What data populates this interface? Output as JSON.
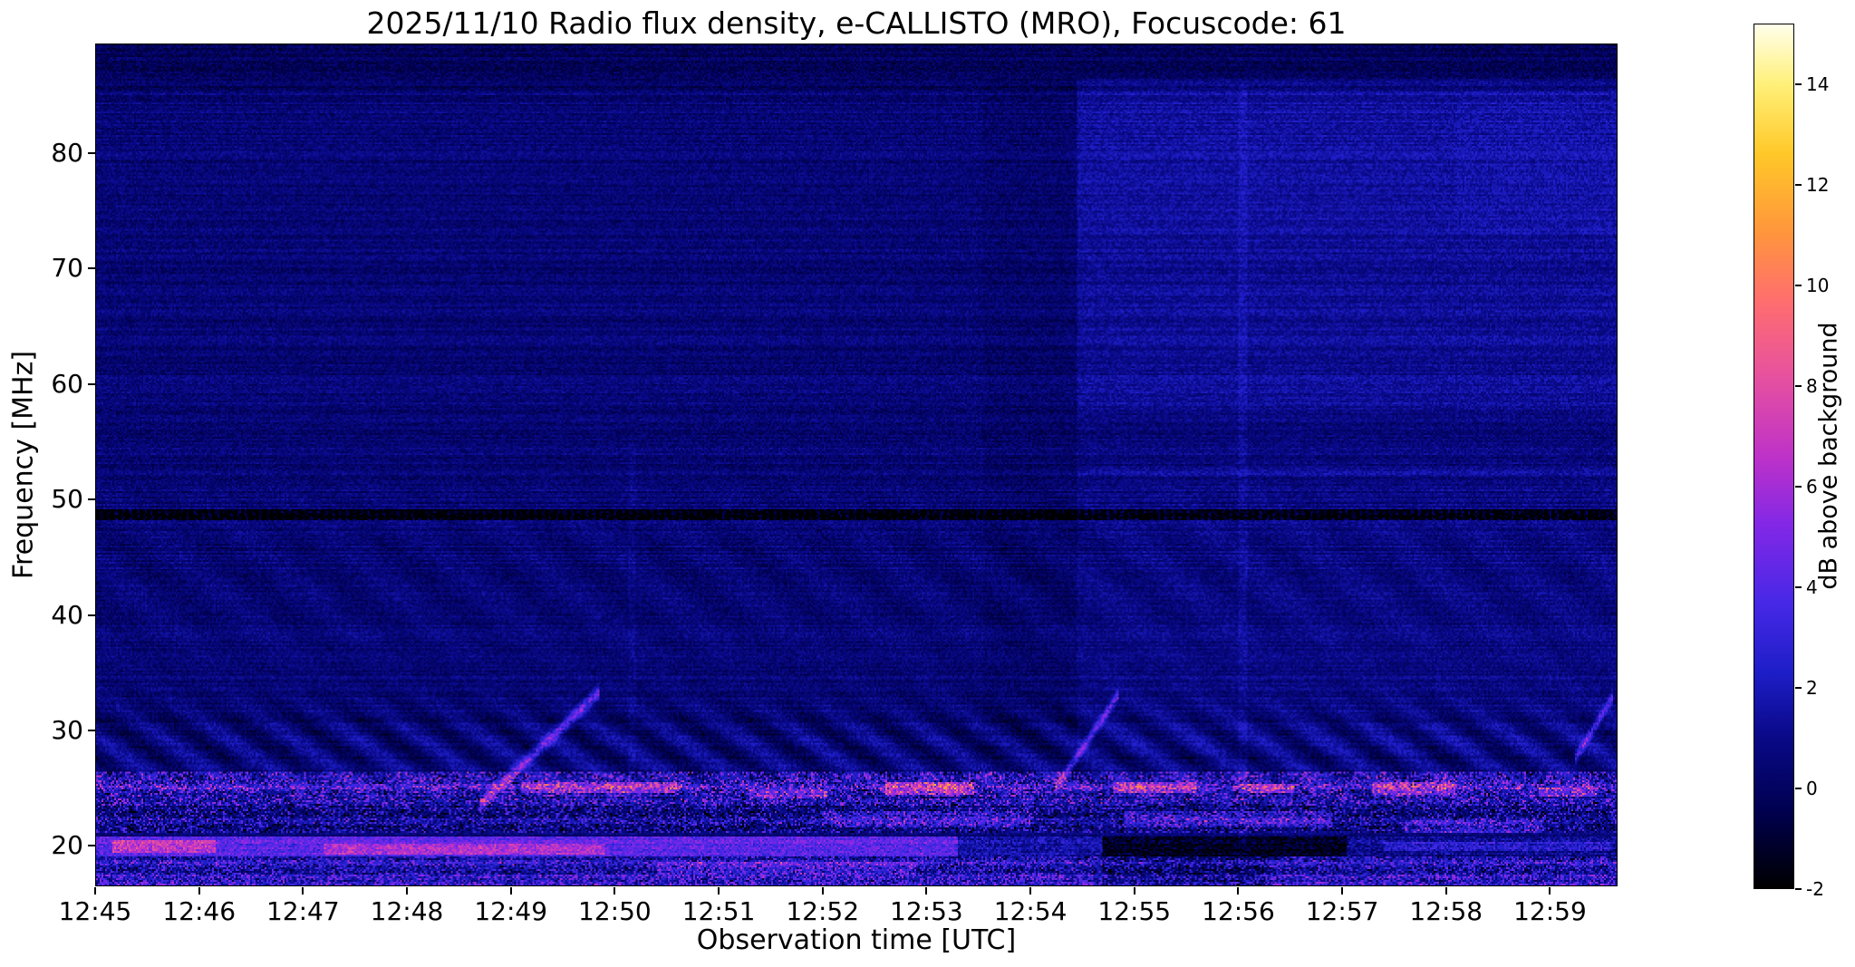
{
  "page": {
    "background": "#ffffff",
    "text_color": "#000000"
  },
  "chart_data": {
    "type": "heatmap",
    "title": "2025/11/10  Radio flux density, e-CALLISTO (MRO), Focuscode: 61",
    "xlabel": "Observation time [UTC]",
    "ylabel": "Frequency [MHz]",
    "x_ticks": [
      "12:45",
      "12:46",
      "12:47",
      "12:48",
      "12:49",
      "12:50",
      "12:51",
      "12:52",
      "12:53",
      "12:54",
      "12:55",
      "12:56",
      "12:57",
      "12:58",
      "12:59"
    ],
    "x_tick_minutes": [
      0,
      1,
      2,
      3,
      4,
      5,
      6,
      7,
      8,
      9,
      10,
      11,
      12,
      13,
      14
    ],
    "x_range_minutes": [
      0,
      14.65
    ],
    "y_ticks_mhz": [
      20,
      30,
      40,
      50,
      60,
      70,
      80
    ],
    "y_range_mhz": [
      16.5,
      89.5
    ],
    "grid": false,
    "legend": "none",
    "colorbar": {
      "label": "dB above background",
      "ticks": [
        -2,
        0,
        2,
        4,
        6,
        8,
        10,
        12,
        14
      ],
      "range": [
        -2,
        15.2
      ]
    },
    "colormap": {
      "name": "gnuplot2-like",
      "stops": [
        {
          "t": 0.0,
          "color": "#000000"
        },
        {
          "t": 0.09,
          "color": "#000050"
        },
        {
          "t": 0.18,
          "color": "#0a0a8c"
        },
        {
          "t": 0.25,
          "color": "#1e1ec8"
        },
        {
          "t": 0.33,
          "color": "#4628e6"
        },
        {
          "t": 0.42,
          "color": "#8228e6"
        },
        {
          "t": 0.5,
          "color": "#be32c8"
        },
        {
          "t": 0.59,
          "color": "#e650a0"
        },
        {
          "t": 0.68,
          "color": "#ff6e6e"
        },
        {
          "t": 0.76,
          "color": "#ff963c"
        },
        {
          "t": 0.85,
          "color": "#ffc828"
        },
        {
          "t": 0.93,
          "color": "#fff078"
        },
        {
          "t": 1.0,
          "color": "#ffffeb"
        }
      ]
    },
    "features": {
      "base_level": 0.45,
      "pixel_noise": 1.5,
      "row_noise": 0.9,
      "patches": [
        {
          "t": [
            9.45,
            14.65
          ],
          "f": [
            52,
            86.5
          ],
          "d": 0.75
        },
        {
          "t": [
            9.45,
            14.65
          ],
          "f": [
            28,
            52
          ],
          "d": 0.3
        },
        {
          "t": [
            9.45,
            14.65
          ],
          "f": [
            53,
            57.5
          ],
          "d": -0.5
        },
        {
          "t": [
            9.45,
            14.65
          ],
          "f": [
            73,
            85.4
          ],
          "d": 0.2
        },
        {
          "t": [
            13.1,
            14.65
          ],
          "f": [
            73,
            85.4
          ],
          "d": 0.2
        },
        {
          "t": [
            8.55,
            9.45
          ],
          "f": [
            28,
            86.5
          ],
          "d": -0.25
        },
        {
          "t": [
            0,
            14.65
          ],
          "f": [
            85.4,
            89.5
          ],
          "d": -0.55
        },
        {
          "t": [
            9.7,
            11.3
          ],
          "f": [
            16.5,
            19.0
          ],
          "d": -1.2
        }
      ],
      "dropout_band": {
        "f": [
          48.2,
          49.2
        ],
        "depth": 2.3
      },
      "fringes": [
        {
          "f_center": 28.5,
          "f_sigma": 2.6,
          "period": 0.62,
          "amp": 1.05,
          "f_phase": 1.6
        },
        {
          "f_center": 43.0,
          "f_sigma": 5.0,
          "period": 0.85,
          "amp": 0.33,
          "f_phase": 0.9
        }
      ],
      "bands": [
        {
          "f": [
            23.4,
            26.4
          ],
          "base": 1.1,
          "bright_p": 0.3,
          "bright_amp": 3.2,
          "dark_p": 0.14,
          "dark_amp": 2.6
        },
        {
          "f": [
            21.0,
            23.4
          ],
          "base": 0.4,
          "bright_p": 0.22,
          "bright_amp": 2.6,
          "dark_p": 0.22,
          "dark_amp": 2.2
        },
        {
          "f": [
            17.4,
            19.0
          ],
          "base": 0.8,
          "bright_p": 0.3,
          "bright_amp": 2.4,
          "dark_p": 0.18,
          "dark_amp": 2.0
        },
        {
          "f": [
            16.5,
            17.4
          ],
          "base": 1.2,
          "bright_p": 0.45,
          "bright_amp": 2.8,
          "dark_p": 0.1,
          "dark_amp": 1.6
        }
      ],
      "segmented_band": {
        "f": [
          19.0,
          20.7
        ],
        "speckle": 2.0,
        "segments": [
          {
            "t": [
              0,
              8.3
            ],
            "lvl": 3.8
          },
          {
            "t": [
              8.3,
              9.7
            ],
            "lvl": 1.2
          },
          {
            "t": [
              9.7,
              12.05
            ],
            "lvl": -1.7
          },
          {
            "t": [
              12.05,
              14.65
            ],
            "lvl": 0.7
          }
        ]
      },
      "lines": [
        {
          "t": [
            0,
            14.65
          ],
          "f": 25.05,
          "h": 0.28,
          "amp": 1.6
        },
        {
          "t": [
            0,
            14.65
          ],
          "f": 22.1,
          "h": 0.2,
          "amp": 1.0
        },
        {
          "t": [
            0,
            14.65
          ],
          "f": 18.45,
          "h": 0.25,
          "amp": 1.8
        }
      ],
      "blobs": [
        {
          "t": [
            4.1,
            5.6
          ],
          "f": 24.95,
          "h": 0.5,
          "amp": 4.2
        },
        {
          "t": [
            6.3,
            7.05
          ],
          "f": 24.4,
          "h": 0.4,
          "amp": 3.2
        },
        {
          "t": [
            7.6,
            8.45
          ],
          "f": 24.95,
          "h": 0.55,
          "amp": 5.5
        },
        {
          "t": [
            9.8,
            10.6
          ],
          "f": 25.0,
          "h": 0.5,
          "amp": 4.6
        },
        {
          "t": [
            11.0,
            11.55
          ],
          "f": 24.9,
          "h": 0.4,
          "amp": 4.0
        },
        {
          "t": [
            12.3,
            13.1
          ],
          "f": 24.9,
          "h": 0.5,
          "amp": 4.2
        },
        {
          "t": [
            13.9,
            14.45
          ],
          "f": 24.6,
          "h": 0.4,
          "amp": 3.4
        },
        {
          "t": [
            0.15,
            1.15
          ],
          "f": 19.8,
          "h": 0.55,
          "amp": 3.6
        },
        {
          "t": [
            2.2,
            4.9
          ],
          "f": 19.6,
          "h": 0.45,
          "amp": 3.0
        },
        {
          "t": [
            7.0,
            9.0
          ],
          "f": 22.3,
          "h": 0.7,
          "amp": 2.6
        },
        {
          "t": [
            9.9,
            11.9
          ],
          "f": 22.2,
          "h": 0.7,
          "amp": 2.3
        },
        {
          "t": [
            12.6,
            13.95
          ],
          "f": 21.6,
          "h": 0.5,
          "amp": 2.4
        },
        {
          "t": [
            5.4,
            7.9
          ],
          "f": 18.0,
          "h": 0.5,
          "amp": 2.2
        },
        {
          "t": [
            12.4,
            14.6
          ],
          "f": 19.9,
          "h": 0.4,
          "amp": 2.0
        }
      ],
      "bursts": [
        {
          "t": [
            3.7,
            4.85
          ],
          "f": [
            23.5,
            33.3
          ],
          "sigma": 0.4,
          "amp": 5.6
        },
        {
          "t": [
            9.25,
            9.85
          ],
          "f": [
            25.0,
            33.0
          ],
          "sigma": 0.35,
          "amp": 5.0
        },
        {
          "t": [
            14.25,
            14.62
          ],
          "f": [
            27.5,
            33.0
          ],
          "sigma": 0.35,
          "amp": 4.6
        }
      ],
      "vlines": [
        {
          "t": 11.05,
          "f": [
            18,
            86
          ],
          "amp": 0.55,
          "w": 0.04
        },
        {
          "t": 5.17,
          "f": [
            17,
            55
          ],
          "amp": 0.4,
          "w": 0.035
        }
      ]
    }
  }
}
